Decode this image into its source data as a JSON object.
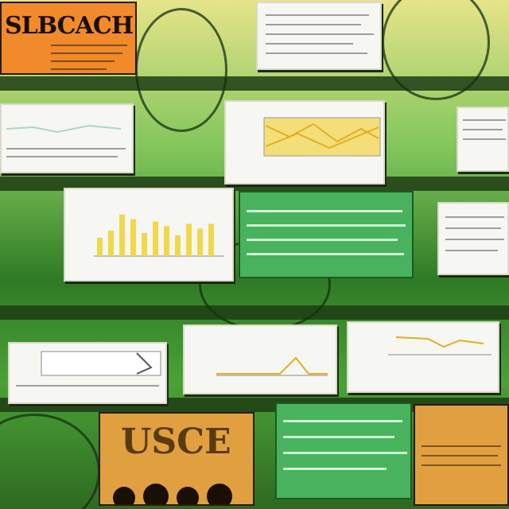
{
  "poster_top": {
    "title": "SLBCACH"
  },
  "poster_bottom": {
    "title": "USCE"
  },
  "colors": {
    "orange": "#f08a2a",
    "amber": "#e0a040",
    "green_panel": "#48b25e",
    "line": "#e8c21e",
    "bar": "#f0d84a"
  }
}
